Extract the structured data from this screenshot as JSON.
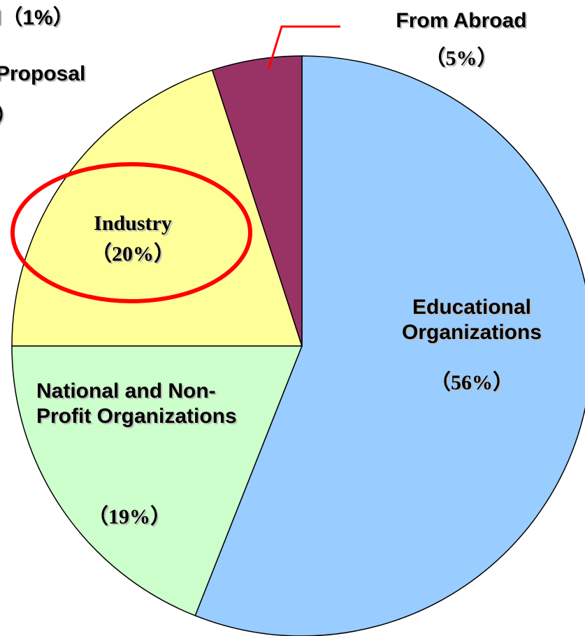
{
  "chart_data": {
    "type": "pie",
    "categories": [
      "Educational Organizations",
      "National and Non-Profit Organizations",
      "Industry",
      "From Abroad"
    ],
    "values": [
      56,
      19,
      20,
      5
    ],
    "value_labels": [
      "（56%）",
      "（19%）",
      "（20%）",
      "（5%）"
    ],
    "colors": [
      "#99ccff",
      "#ccffcc",
      "#ffff99",
      "#993366"
    ],
    "start_angle": 0,
    "direction": "clockwise",
    "annotations": [
      "l（1%）",
      "Proposal",
      "）"
    ]
  }
}
